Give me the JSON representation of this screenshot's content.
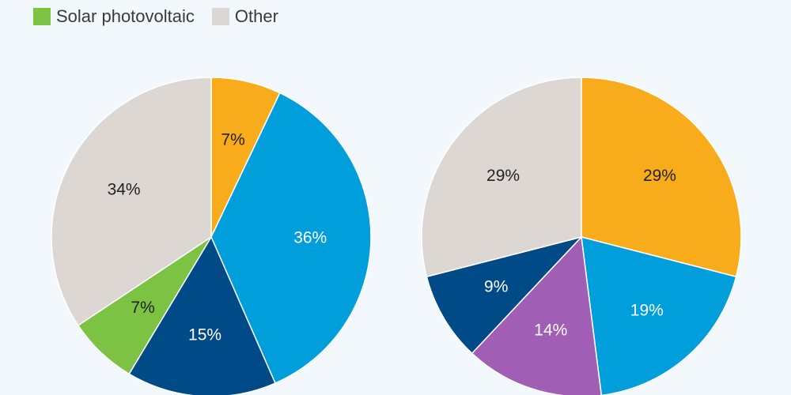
{
  "legend": [
    {
      "label": "Solar photovoltaic",
      "color": "#7cc243"
    },
    {
      "label": "Other",
      "color": "#ddd7d3"
    }
  ],
  "chart_data": [
    {
      "type": "pie",
      "slices": [
        {
          "value": 7,
          "label": "7%",
          "color": "#f9ac1b"
        },
        {
          "value": 36,
          "label": "36%",
          "color": "#009edb"
        },
        {
          "value": 15,
          "label": "15%",
          "color": "#004a87"
        },
        {
          "value": 7,
          "label": "7%",
          "color": "#7cc243"
        },
        {
          "value": 34,
          "label": "34%",
          "color": "#ddd7d3"
        }
      ]
    },
    {
      "type": "pie",
      "slices": [
        {
          "value": 29,
          "label": "29%",
          "color": "#f9ac1b"
        },
        {
          "value": 19,
          "label": "19%",
          "color": "#009edb"
        },
        {
          "value": 14,
          "label": "14%",
          "color": "#a05fb4"
        },
        {
          "value": 9,
          "label": "9%",
          "color": "#004a87"
        },
        {
          "value": 29,
          "label": "29%",
          "color": "#ddd7d3"
        }
      ]
    }
  ]
}
